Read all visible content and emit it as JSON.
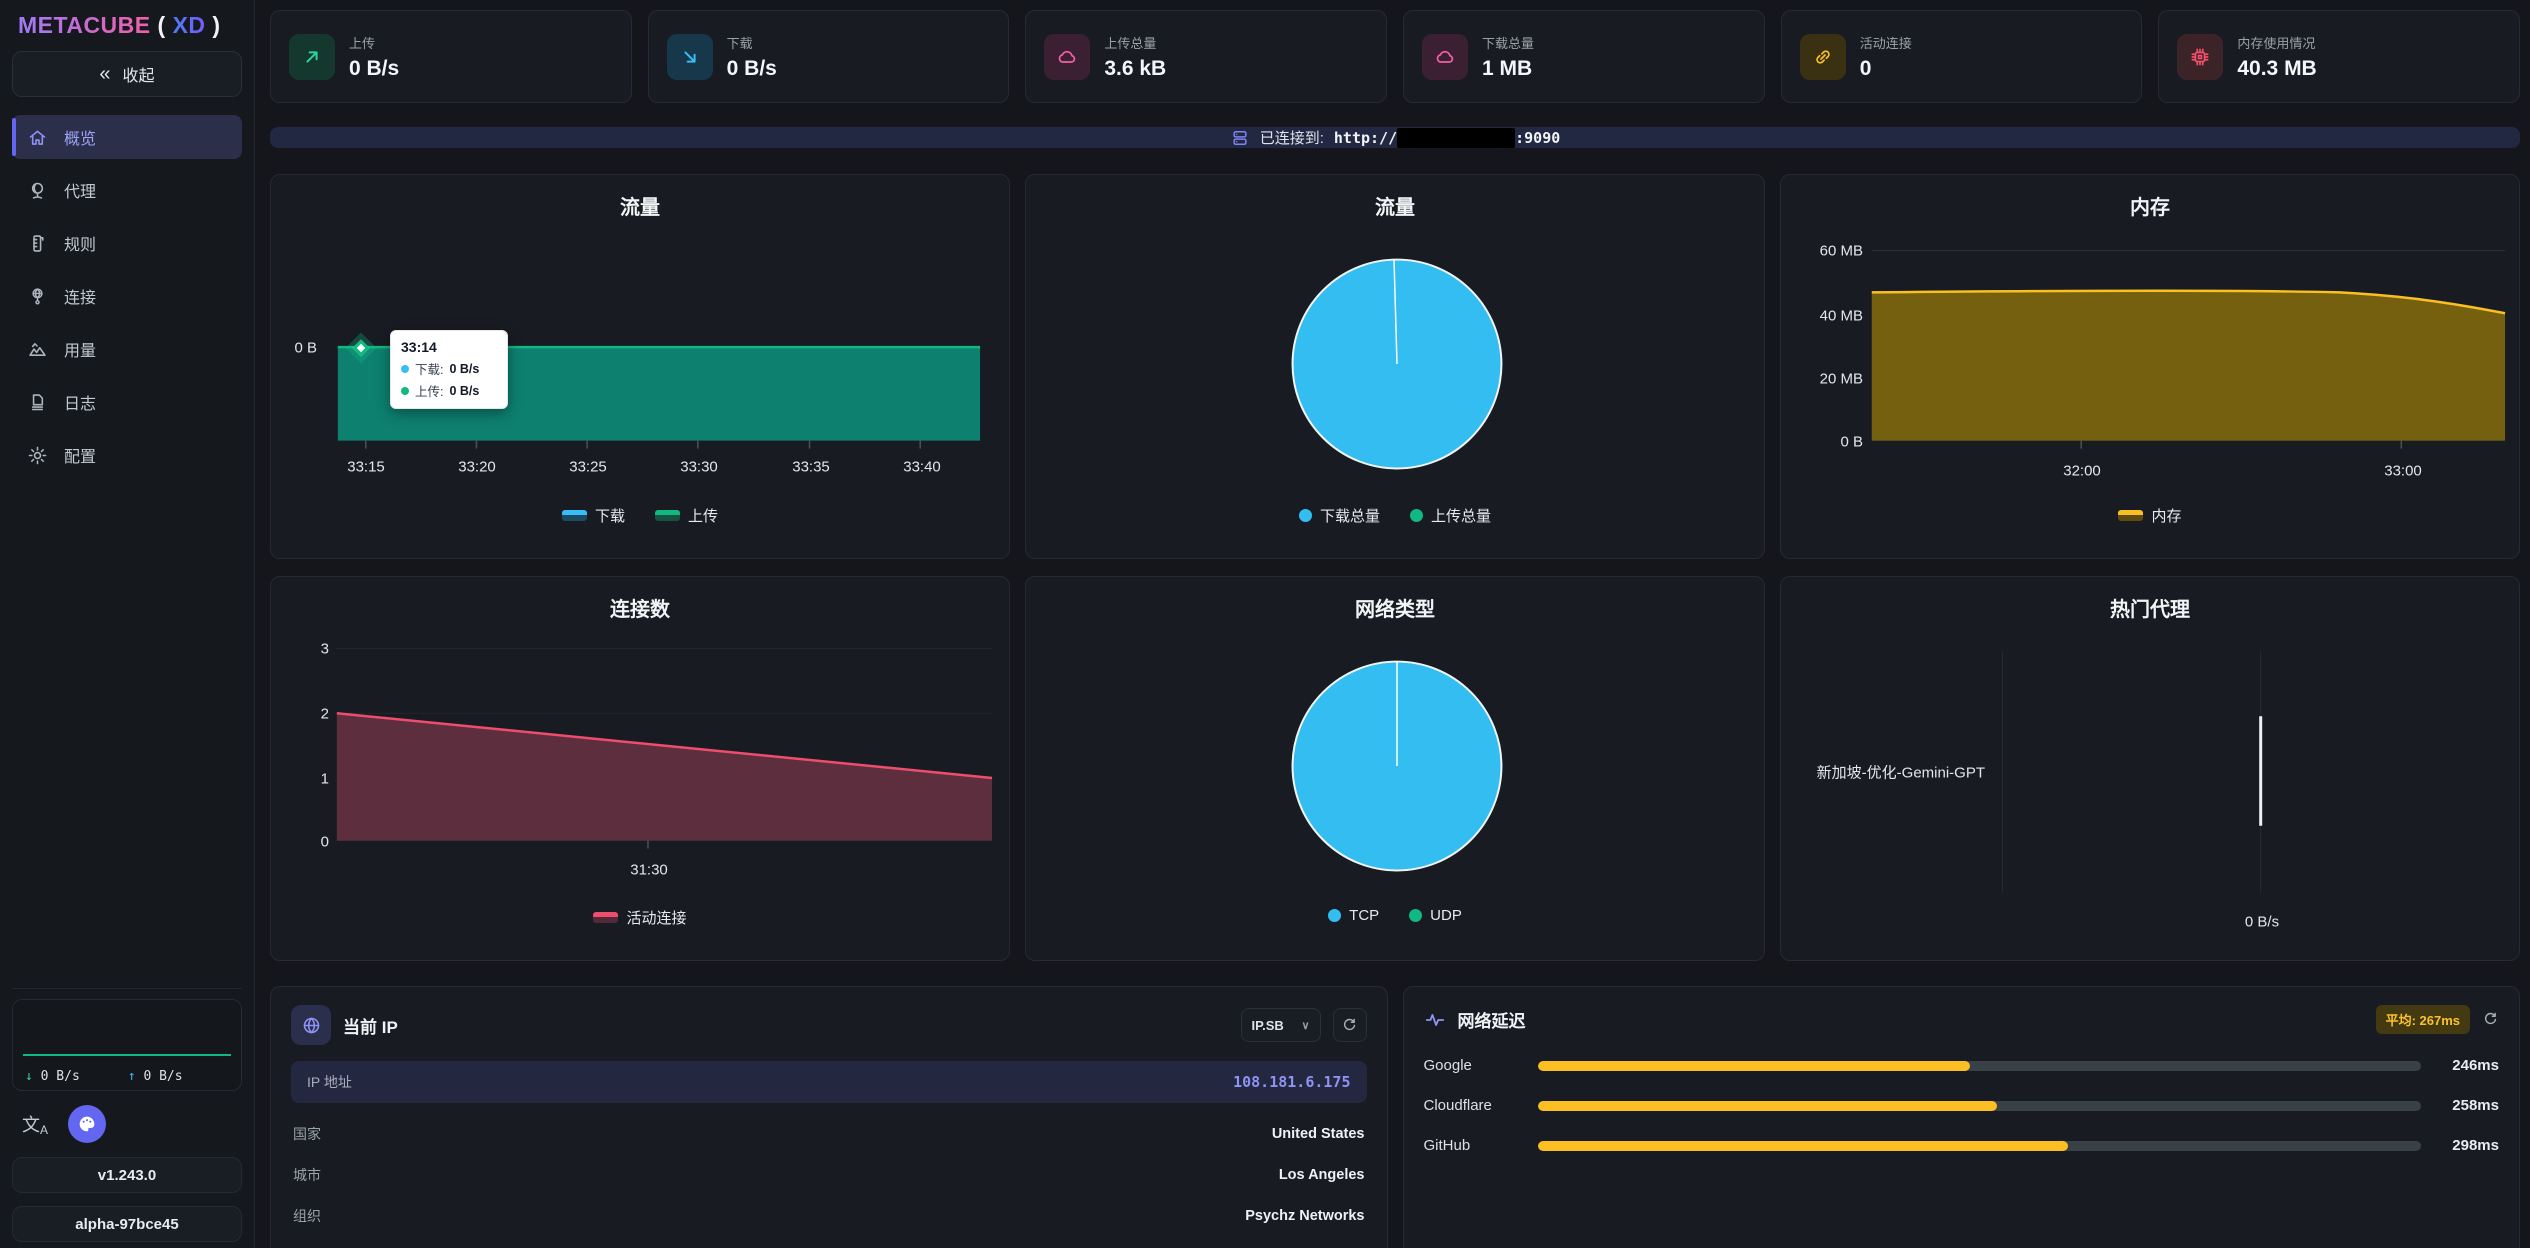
{
  "app": {
    "accent_color": "#6366f1"
  },
  "sidebar": {
    "logo": {
      "brand": "METACUBE",
      "open": "(",
      "suffix": "XD",
      "close": ")"
    },
    "collapse": {
      "icon_glyph": "«",
      "label": "收起"
    },
    "items": [
      {
        "label": "概览",
        "icon": "home-icon",
        "active": true
      },
      {
        "label": "代理",
        "icon": "globe-stand-icon",
        "active": false
      },
      {
        "label": "规则",
        "icon": "ruler-icon",
        "active": false
      },
      {
        "label": "连接",
        "icon": "network-globe-icon",
        "active": false
      },
      {
        "label": "用量",
        "icon": "area-chart-icon",
        "active": false
      },
      {
        "label": "日志",
        "icon": "document-icon",
        "active": false
      },
      {
        "label": "配置",
        "icon": "gear-icon",
        "active": false
      }
    ],
    "mini_traffic": {
      "down_arrow": "↓",
      "down": "0 B/s",
      "up_arrow": "↑",
      "up": "0 B/s",
      "line_color": "#10b981"
    },
    "language_glyph_main": "文",
    "language_glyph_sub": "A",
    "version_button": "v1.243.0",
    "build_button": "alpha-97bce45"
  },
  "stats": [
    {
      "label": "上传",
      "value": "0 B/s",
      "icon": "arrow-up-right-icon",
      "icon_color": "#2dd4a0"
    },
    {
      "label": "下载",
      "value": "0 B/s",
      "icon": "arrow-down-right-icon",
      "icon_color": "#38bdf8"
    },
    {
      "label": "上传总量",
      "value": "3.6 kB",
      "icon": "cloud-upload-icon",
      "icon_color": "#f45da8"
    },
    {
      "label": "下载总量",
      "value": "1 MB",
      "icon": "cloud-download-icon",
      "icon_color": "#f45da8"
    },
    {
      "label": "活动连接",
      "value": "0",
      "icon": "link-icon",
      "icon_color": "#fbbf24"
    },
    {
      "label": "内存使用情况",
      "value": "40.3 MB",
      "icon": "cpu-icon",
      "icon_color": "#f4506c"
    }
  ],
  "banner": {
    "icon": "server-icon",
    "text": "已连接到:",
    "url_prefix": "http://",
    "url_suffix": ":9090"
  },
  "chart_data": [
    {
      "type": "area",
      "title": "流量",
      "x": [
        "33:15",
        "33:20",
        "33:25",
        "33:30",
        "33:35",
        "33:40"
      ],
      "ylabel_zero": "0 B",
      "series": [
        {
          "name": "下载",
          "color": "#38bdf8",
          "values": [
            0,
            0,
            0,
            0,
            0,
            0
          ]
        },
        {
          "name": "上传",
          "color": "#10b981",
          "values": [
            0,
            0,
            0,
            0,
            0,
            0
          ]
        }
      ],
      "tooltip": {
        "time": "33:14",
        "rows": [
          {
            "label": "下载:",
            "value": "0 B/s",
            "color": "#38bdf8"
          },
          {
            "label": "上传:",
            "value": "0 B/s",
            "color": "#10b981"
          }
        ]
      },
      "legend_position": "bottom",
      "grid": false
    },
    {
      "type": "pie",
      "title": "流量",
      "slices": [
        {
          "label": "下载总量",
          "value": "1 MB",
          "percent": 99.6,
          "color": "#33bdf0"
        },
        {
          "label": "上传总量",
          "value": "3.6 kB",
          "percent": 0.4,
          "color": "#10b981"
        }
      ],
      "legend_position": "bottom"
    },
    {
      "type": "area",
      "title": "内存",
      "x": [
        "32:00",
        "33:00"
      ],
      "y_ticks": [
        "60 MB",
        "40 MB",
        "20 MB",
        "0 B"
      ],
      "ylim_mb": [
        0,
        60
      ],
      "series": [
        {
          "name": "内存",
          "color": "#fbbf24",
          "values_mb": [
            46,
            46,
            46,
            45.8,
            45.2,
            44.2,
            42.8,
            41.3,
            40.3
          ]
        }
      ],
      "legend_position": "bottom",
      "grid": true
    },
    {
      "type": "area",
      "title": "连接数",
      "x": [
        "31:30"
      ],
      "y_ticks": [
        "3",
        "2",
        "1",
        "0"
      ],
      "ylim": [
        0,
        3
      ],
      "series": [
        {
          "name": "活动连接",
          "color": "#ee4d6e",
          "values": [
            2,
            1
          ]
        }
      ],
      "legend_position": "bottom",
      "grid": true
    },
    {
      "type": "pie",
      "title": "网络类型",
      "slices": [
        {
          "label": "TCP",
          "percent": 100,
          "color": "#33bdf0"
        },
        {
          "label": "UDP",
          "percent": 0,
          "color": "#10b981"
        }
      ],
      "legend_position": "bottom"
    },
    {
      "type": "bar",
      "orientation": "horizontal",
      "title": "热门代理",
      "categories": [
        "新加坡-优化-Gemini-GPT"
      ],
      "values_bps": [
        0
      ],
      "x_tick": "0 B/s"
    }
  ],
  "current_ip": {
    "title": "当前 IP",
    "icon": "globe-icon",
    "provider_select": {
      "value": "IP.SB",
      "chevron": "∨"
    },
    "ip_row": {
      "label": "IP 地址",
      "value": "108.181.6.175"
    },
    "rows": [
      {
        "label": "国家",
        "value": "United States"
      },
      {
        "label": "城市",
        "value": "Los Angeles"
      },
      {
        "label": "组织",
        "value": "Psychz Networks"
      }
    ]
  },
  "latency": {
    "title": "网络延迟",
    "icon": "pulse-icon",
    "average_badge": "平均: 267ms",
    "bar_color": "#fbbf24",
    "rows": [
      {
        "label": "Google",
        "value": "246ms",
        "percent": 49
      },
      {
        "label": "Cloudflare",
        "value": "258ms",
        "percent": 52
      },
      {
        "label": "GitHub",
        "value": "298ms",
        "percent": 60
      }
    ]
  }
}
